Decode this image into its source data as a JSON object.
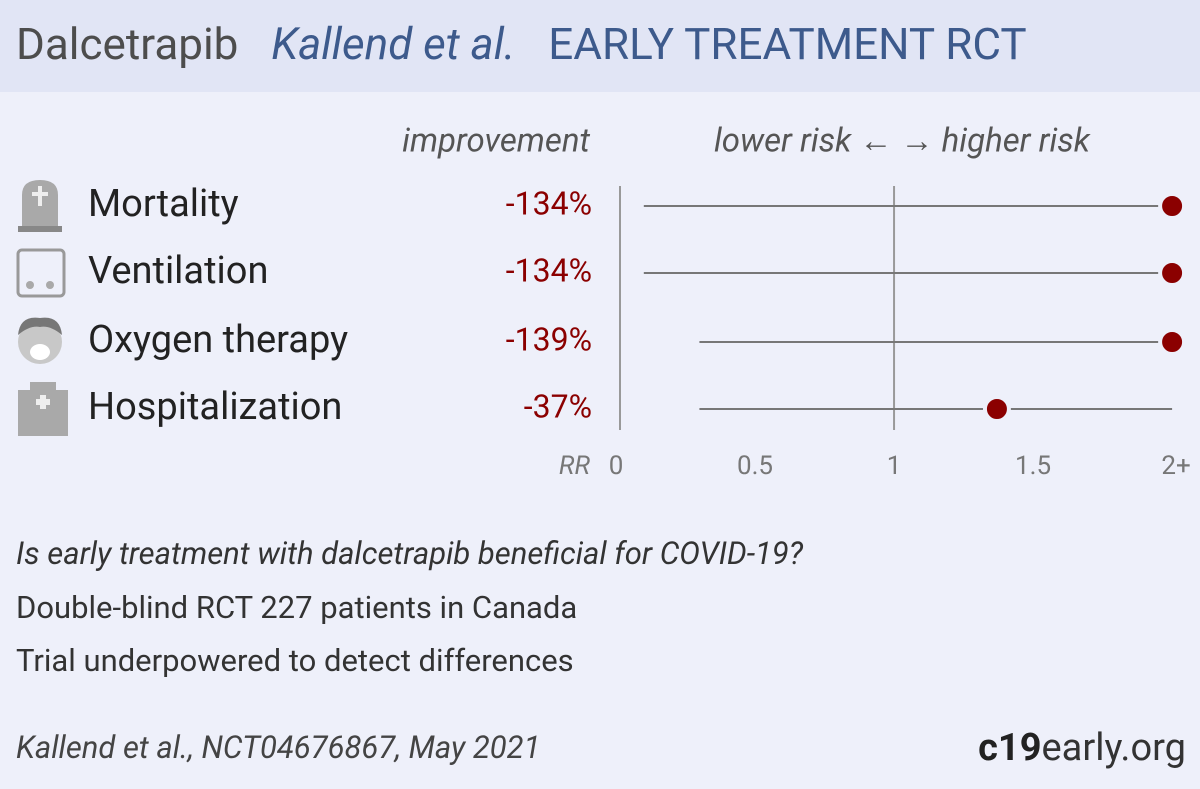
{
  "header": {
    "drug": "Dalcetrapib",
    "authors": "Kallend et al.",
    "label": "EARLY TREATMENT RCT"
  },
  "chart_data": {
    "type": "forest",
    "column_label": "improvement",
    "direction_label": "lower risk ← → higher risk",
    "axis_label": "RR",
    "categories": [
      "Mortality",
      "Ventilation",
      "Oxygen therapy",
      "Hospitalization"
    ],
    "improvement": {
      "values": [
        -134,
        -134,
        -139,
        -37
      ],
      "value_labels": [
        "-134%",
        "-134%",
        "-139%",
        "-37%"
      ]
    },
    "values": [
      2,
      2,
      2,
      1.37
    ],
    "ci_low": [
      0.1,
      0.1,
      0.3,
      0.3
    ],
    "ci_high": [
      2.05,
      2.05,
      2.05,
      2.0
    ],
    "color": "#8b0000",
    "xlim": [
      0,
      2.05
    ],
    "xticks": [
      0,
      0.5,
      1,
      1.5,
      {
        "value": 2,
        "label": "2+"
      }
    ]
  },
  "summary": {
    "question": "Is early treatment with dalcetrapib beneficial for COVID-19?",
    "design": "Double-blind RCT 227 patients in Canada",
    "note": "Trial underpowered to detect differences"
  },
  "citation": "Kallend et al., NCT04676867, May 2021",
  "brand": {
    "bold": "c19",
    "rest": "early.org"
  }
}
